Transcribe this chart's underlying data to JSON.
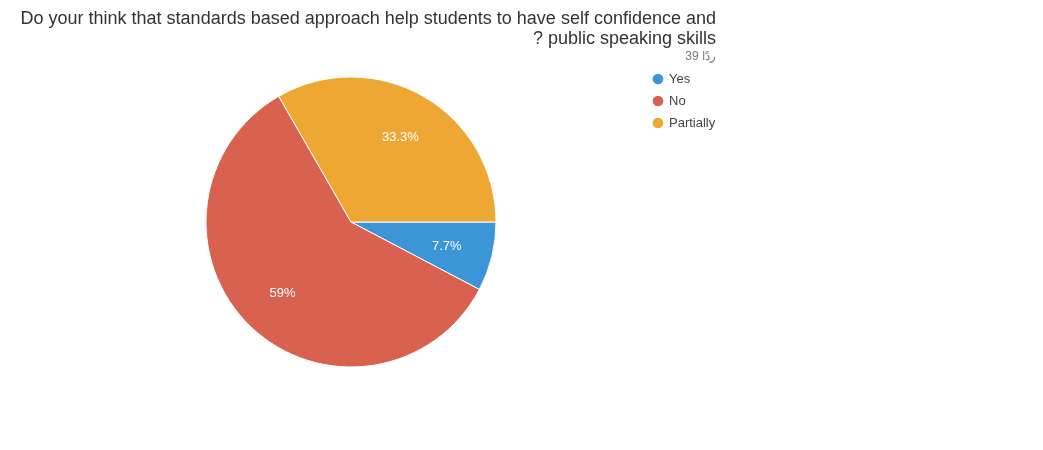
{
  "chart_data": {
    "type": "pie",
    "title": "Do your think that standards based approach help students to have self confidence and ? public speaking skills",
    "subtitle": "39 ردًا",
    "categories": [
      "Yes",
      "No",
      "Partially"
    ],
    "values": [
      7.7,
      59,
      33.3
    ],
    "colors": [
      "#3b95d6",
      "#d9614f",
      "#efa733"
    ],
    "value_labels": [
      "7.7%",
      "59%",
      "33.3%"
    ],
    "legend": "right"
  }
}
